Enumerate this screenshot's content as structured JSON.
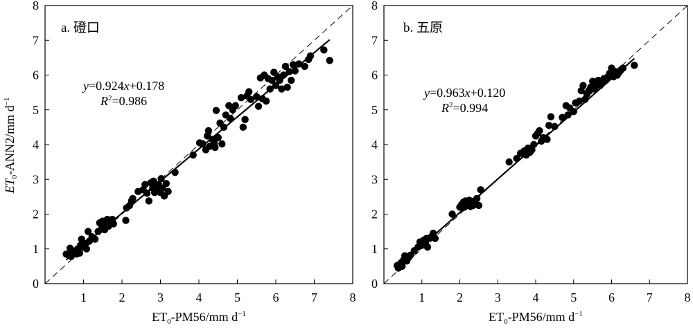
{
  "chart_data": [
    {
      "type": "scatter",
      "panel_label": "a. 磴口",
      "xlabel": {
        "main": "ET",
        "sub": "0",
        "rest": "-PM56/mm d",
        "sup": "−1"
      },
      "ylabel": {
        "main": "ET",
        "sub": "0",
        "rest": "-ANN2/mm d",
        "sup": "−1"
      },
      "xlim": [
        0,
        8
      ],
      "ylim": [
        0,
        8
      ],
      "xticks": [
        "1",
        "2",
        "3",
        "4",
        "5",
        "6",
        "7",
        "8"
      ],
      "yticks": [
        "0",
        "1",
        "2",
        "3",
        "4",
        "5",
        "6",
        "7",
        "8"
      ],
      "equation": {
        "y": "y",
        "eq1": "=0.924",
        "x": "x",
        "eq2": "+0.178"
      },
      "r2": {
        "r": "R",
        "sup": "2",
        "val": "=0.986"
      },
      "fit": {
        "slope": 0.924,
        "intercept": 0.178,
        "x_range": [
          0.55,
          7.4
        ]
      },
      "reference_line": "1:1",
      "points": [
        [
          0.55,
          0.85
        ],
        [
          0.62,
          0.82
        ],
        [
          0.65,
          1.02
        ],
        [
          0.68,
          0.78
        ],
        [
          0.72,
          0.95
        ],
        [
          0.78,
          0.9
        ],
        [
          0.82,
          0.85
        ],
        [
          0.85,
          1.0
        ],
        [
          0.9,
          0.88
        ],
        [
          0.92,
          1.1
        ],
        [
          0.95,
          1.28
        ],
        [
          1.0,
          1.05
        ],
        [
          1.05,
          1.15
        ],
        [
          1.08,
          1.0
        ],
        [
          1.12,
          1.5
        ],
        [
          1.15,
          1.22
        ],
        [
          1.22,
          1.35
        ],
        [
          1.3,
          1.28
        ],
        [
          1.38,
          1.5
        ],
        [
          1.42,
          1.75
        ],
        [
          1.48,
          1.62
        ],
        [
          1.5,
          1.8
        ],
        [
          1.55,
          1.55
        ],
        [
          1.58,
          1.7
        ],
        [
          1.62,
          1.85
        ],
        [
          1.65,
          1.65
        ],
        [
          1.7,
          1.78
        ],
        [
          1.75,
          1.85
        ],
        [
          1.78,
          1.72
        ],
        [
          2.1,
          1.82
        ],
        [
          2.12,
          2.18
        ],
        [
          2.2,
          2.25
        ],
        [
          2.25,
          2.38
        ],
        [
          2.28,
          2.45
        ],
        [
          2.42,
          2.65
        ],
        [
          2.55,
          2.7
        ],
        [
          2.6,
          2.85
        ],
        [
          2.65,
          2.6
        ],
        [
          2.7,
          2.38
        ],
        [
          2.75,
          2.9
        ],
        [
          2.8,
          2.75
        ],
        [
          2.82,
          2.95
        ],
        [
          2.85,
          2.62
        ],
        [
          2.9,
          2.7
        ],
        [
          2.95,
          2.85
        ],
        [
          3.0,
          2.62
        ],
        [
          3.02,
          3.02
        ],
        [
          3.05,
          2.75
        ],
        [
          3.1,
          2.52
        ],
        [
          3.15,
          2.88
        ],
        [
          3.2,
          2.65
        ],
        [
          3.38,
          3.2
        ],
        [
          3.85,
          3.7
        ],
        [
          4.02,
          4.05
        ],
        [
          4.1,
          4.02
        ],
        [
          4.18,
          3.85
        ],
        [
          4.22,
          4.25
        ],
        [
          4.25,
          4.4
        ],
        [
          4.28,
          3.95
        ],
        [
          4.35,
          4.15
        ],
        [
          4.4,
          4.05
        ],
        [
          4.42,
          3.92
        ],
        [
          4.45,
          4.98
        ],
        [
          4.5,
          4.2
        ],
        [
          4.55,
          4.62
        ],
        [
          4.6,
          4.02
        ],
        [
          4.65,
          4.5
        ],
        [
          4.7,
          4.85
        ],
        [
          4.78,
          5.12
        ],
        [
          4.82,
          4.75
        ],
        [
          4.88,
          5.0
        ],
        [
          4.95,
          5.12
        ],
        [
          5.1,
          5.35
        ],
        [
          5.15,
          4.5
        ],
        [
          5.2,
          4.72
        ],
        [
          5.25,
          5.4
        ],
        [
          5.3,
          5.52
        ],
        [
          5.35,
          5.3
        ],
        [
          5.5,
          5.38
        ],
        [
          5.55,
          5.1
        ],
        [
          5.6,
          5.92
        ],
        [
          5.65,
          5.32
        ],
        [
          5.7,
          6.0
        ],
        [
          5.75,
          5.25
        ],
        [
          5.8,
          5.9
        ],
        [
          5.85,
          5.6
        ],
        [
          5.9,
          5.85
        ],
        [
          5.95,
          6.08
        ],
        [
          6.0,
          5.7
        ],
        [
          6.05,
          5.95
        ],
        [
          6.1,
          5.85
        ],
        [
          6.15,
          5.6
        ],
        [
          6.2,
          6.0
        ],
        [
          6.25,
          6.25
        ],
        [
          6.3,
          5.65
        ],
        [
          6.35,
          6.1
        ],
        [
          6.4,
          5.85
        ],
        [
          6.45,
          6.3
        ],
        [
          6.5,
          6.12
        ],
        [
          6.6,
          6.32
        ],
        [
          6.75,
          6.25
        ],
        [
          6.85,
          6.45
        ],
        [
          6.9,
          6.55
        ],
        [
          7.25,
          6.72
        ],
        [
          7.4,
          6.42
        ]
      ]
    },
    {
      "type": "scatter",
      "panel_label": "b. 五原",
      "xlabel": {
        "main": "ET",
        "sub": "0",
        "rest": "-PM56/mm d",
        "sup": "−1"
      },
      "xlim": [
        0,
        8
      ],
      "ylim": [
        0,
        8
      ],
      "xticks": [
        "1",
        "2",
        "3",
        "4",
        "5",
        "6",
        "7",
        "8"
      ],
      "yticks": [
        "0",
        "1",
        "2",
        "3",
        "4",
        "5",
        "6",
        "7",
        "8"
      ],
      "equation": {
        "y": "y",
        "eq1": "=0.963",
        "x": "x",
        "eq2": "+0.120"
      },
      "r2": {
        "r": "R",
        "sup": "2",
        "val": "=0.994"
      },
      "fit": {
        "slope": 0.963,
        "intercept": 0.12,
        "x_range": [
          0.35,
          6.6
        ]
      },
      "reference_line": "1:1",
      "points": [
        [
          0.35,
          0.52
        ],
        [
          0.38,
          0.45
        ],
        [
          0.42,
          0.55
        ],
        [
          0.45,
          0.6
        ],
        [
          0.48,
          0.5
        ],
        [
          0.52,
          0.68
        ],
        [
          0.55,
          0.8
        ],
        [
          0.6,
          0.65
        ],
        [
          0.65,
          0.75
        ],
        [
          0.7,
          0.82
        ],
        [
          0.8,
          0.95
        ],
        [
          0.9,
          1.05
        ],
        [
          0.95,
          1.2
        ],
        [
          1.0,
          1.1
        ],
        [
          1.05,
          1.25
        ],
        [
          1.1,
          1.15
        ],
        [
          1.12,
          1.3
        ],
        [
          1.15,
          1.05
        ],
        [
          1.2,
          1.3
        ],
        [
          1.25,
          1.35
        ],
        [
          1.3,
          1.45
        ],
        [
          1.35,
          1.3
        ],
        [
          1.8,
          2.0
        ],
        [
          2.0,
          2.2
        ],
        [
          2.05,
          2.28
        ],
        [
          2.1,
          2.35
        ],
        [
          2.12,
          2.2
        ],
        [
          2.15,
          2.38
        ],
        [
          2.18,
          2.25
        ],
        [
          2.2,
          2.3
        ],
        [
          2.25,
          2.4
        ],
        [
          2.28,
          2.22
        ],
        [
          2.3,
          2.28
        ],
        [
          2.35,
          2.25
        ],
        [
          2.38,
          2.38
        ],
        [
          2.42,
          2.3
        ],
        [
          2.45,
          2.45
        ],
        [
          2.5,
          2.25
        ],
        [
          2.55,
          2.7
        ],
        [
          3.3,
          3.5
        ],
        [
          3.5,
          3.6
        ],
        [
          3.6,
          3.75
        ],
        [
          3.7,
          3.82
        ],
        [
          3.75,
          3.7
        ],
        [
          3.8,
          3.9
        ],
        [
          3.85,
          3.78
        ],
        [
          3.9,
          3.85
        ],
        [
          3.95,
          4.0
        ],
        [
          4.0,
          4.25
        ],
        [
          4.05,
          4.32
        ],
        [
          4.1,
          4.4
        ],
        [
          4.15,
          4.1
        ],
        [
          4.2,
          4.2
        ],
        [
          4.3,
          4.15
        ],
        [
          4.35,
          4.55
        ],
        [
          4.4,
          4.8
        ],
        [
          4.5,
          4.52
        ],
        [
          4.7,
          4.78
        ],
        [
          4.8,
          5.12
        ],
        [
          4.85,
          4.85
        ],
        [
          4.9,
          5.05
        ],
        [
          5.0,
          4.95
        ],
        [
          5.05,
          5.2
        ],
        [
          5.15,
          5.25
        ],
        [
          5.2,
          5.55
        ],
        [
          5.25,
          5.7
        ],
        [
          5.3,
          5.3
        ],
        [
          5.35,
          5.45
        ],
        [
          5.4,
          5.55
        ],
        [
          5.45,
          5.65
        ],
        [
          5.5,
          5.82
        ],
        [
          5.55,
          5.6
        ],
        [
          5.6,
          5.75
        ],
        [
          5.65,
          5.85
        ],
        [
          5.7,
          5.7
        ],
        [
          5.75,
          5.8
        ],
        [
          5.8,
          5.9
        ],
        [
          5.85,
          5.85
        ],
        [
          5.9,
          5.95
        ],
        [
          5.95,
          6.05
        ],
        [
          6.0,
          6.2
        ],
        [
          6.05,
          5.95
        ],
        [
          6.1,
          6.1
        ],
        [
          6.15,
          6.0
        ],
        [
          6.2,
          6.08
        ],
        [
          6.25,
          6.15
        ],
        [
          6.3,
          6.2
        ],
        [
          6.6,
          6.28
        ]
      ]
    }
  ]
}
